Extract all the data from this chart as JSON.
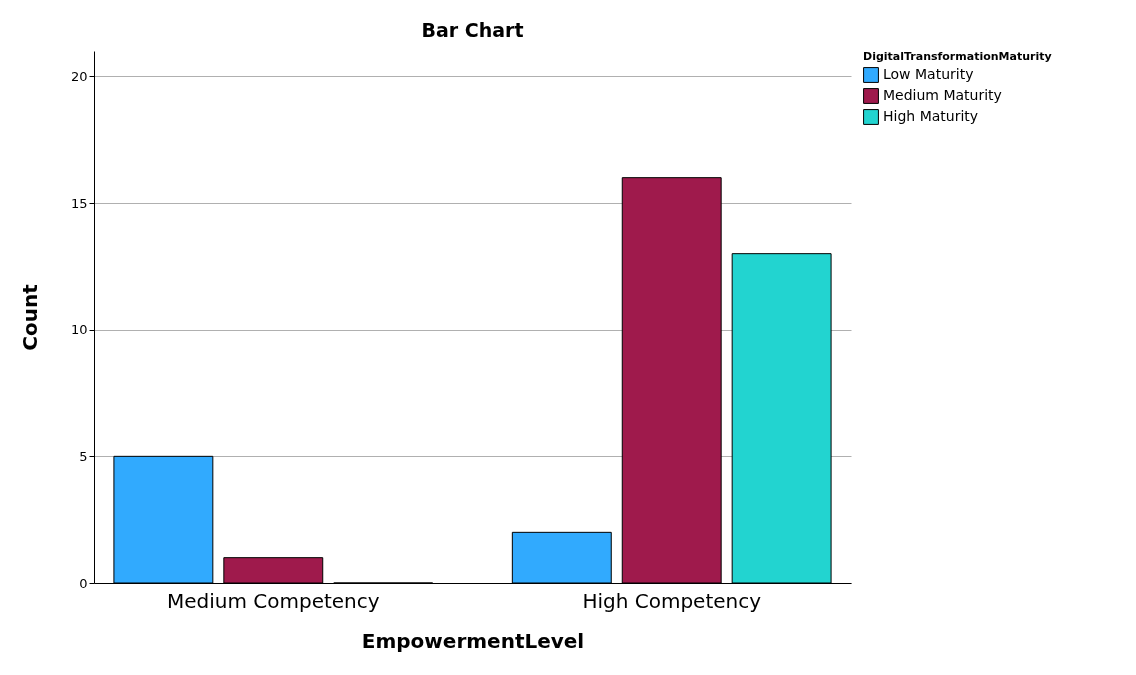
{
  "chart_data": {
    "type": "bar",
    "title": "Bar Chart",
    "xlabel": "EmpowermentLevel",
    "ylabel": "Count",
    "legend_title": "DigitalTransformationMaturity",
    "categories": [
      "Medium Competency",
      "High Competency"
    ],
    "series": [
      {
        "name": "Low Maturity",
        "color": "#31aafe",
        "values": [
          5,
          2
        ]
      },
      {
        "name": "Medium Maturity",
        "color": "#9f1a4c",
        "values": [
          1,
          16
        ]
      },
      {
        "name": "High Maturity",
        "color": "#22d4d0",
        "values": [
          0,
          13
        ]
      }
    ],
    "ylim": [
      0,
      21
    ],
    "yticks": [
      0,
      5,
      10,
      15,
      20
    ],
    "grid": "y",
    "legend": "top right"
  }
}
